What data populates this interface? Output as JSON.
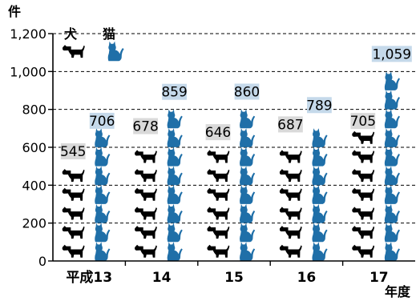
{
  "chart_data": {
    "type": "bar",
    "y_unit": "件",
    "x_unit": "年度",
    "categories": [
      "平成13",
      "14",
      "15",
      "16",
      "17"
    ],
    "series": [
      {
        "name": "犬",
        "values": [
          545,
          678,
          646,
          687,
          705
        ],
        "color": "#000000",
        "icon": "dog-icon",
        "label_bg": "#d9d9d9"
      },
      {
        "name": "猫",
        "values": [
          706,
          859,
          860,
          789,
          1059
        ],
        "color": "#1f6fa8",
        "icon": "cat-icon",
        "label_bg": "#c5d9ea"
      }
    ],
    "data_labels": [
      [
        "545",
        "678",
        "646",
        "687",
        "705"
      ],
      [
        "706",
        "859",
        "860",
        "789",
        "1,059"
      ]
    ],
    "ylim": [
      0,
      1200
    ],
    "yticks": [
      0,
      200,
      400,
      600,
      800,
      1000,
      1200
    ],
    "ytick_labels": [
      "0",
      "200",
      "400",
      "600",
      "800",
      "1,000",
      "1,200"
    ],
    "grid": true,
    "legend": "top-left"
  }
}
